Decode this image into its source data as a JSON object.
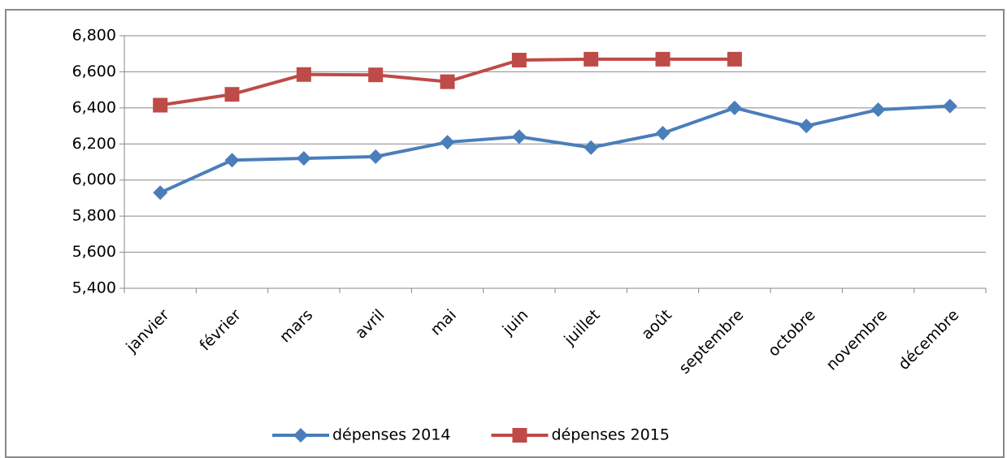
{
  "chart_data": {
    "type": "line",
    "categories": [
      "janvier",
      "février",
      "mars",
      "avril",
      "mai",
      "juin",
      "juillet",
      "août",
      "septembre",
      "octobre",
      "novembre",
      "décembre"
    ],
    "series": [
      {
        "name": "dépenses 2014",
        "color": "#4a7ebb",
        "marker": "diamond",
        "values": [
          5930,
          6110,
          6120,
          6130,
          6210,
          6240,
          6180,
          6260,
          6400,
          6300,
          6390,
          6410
        ]
      },
      {
        "name": "dépenses 2015",
        "color": "#be4b48",
        "marker": "square",
        "values": [
          6415,
          6475,
          6585,
          6583,
          6545,
          6665,
          6670,
          6670,
          6670,
          null,
          null,
          null
        ]
      }
    ],
    "ylim": [
      5400,
      6800
    ],
    "yticks": [
      {
        "value": 5400,
        "label": "5,400"
      },
      {
        "value": 5600,
        "label": "5,600"
      },
      {
        "value": 5800,
        "label": "5,800"
      },
      {
        "value": 6000,
        "label": "6,000"
      },
      {
        "value": 6200,
        "label": "6,200"
      },
      {
        "value": 6400,
        "label": "6,400"
      },
      {
        "value": 6600,
        "label": "6,600"
      },
      {
        "value": 6800,
        "label": "6,800"
      }
    ],
    "grid": true,
    "legend": "bottom"
  }
}
